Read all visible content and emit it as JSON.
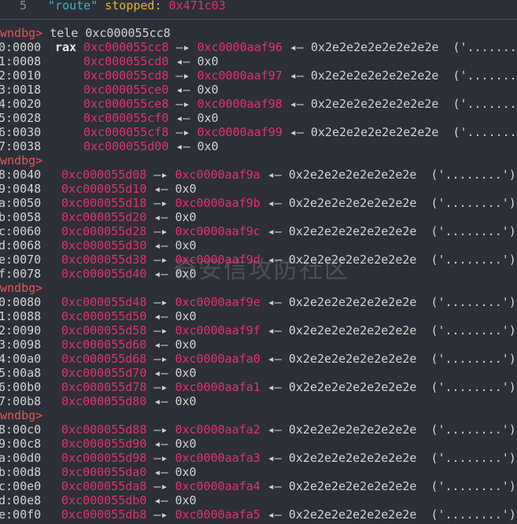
{
  "header": {
    "line_no": "5",
    "name": "\"route\"",
    "status": "stopped:",
    "addr": "0x471c03"
  },
  "watermark": "奇安信攻防社区",
  "blocks": [
    {
      "prompt": "wndbg>",
      "command": "tele 0xc000055cc8",
      "rows": [
        {
          "offset": "0:0000",
          "reg": "rax",
          "addr": "0xc000055cc8",
          "arrow": "—▸",
          "target": "0xc0000aaf96",
          "arrow2": "◂—",
          "value": "0x2e2e2e2e2e2e2e2e",
          "str": "('........"
        },
        {
          "offset": "1:0008",
          "addr": "0xc000055cd0",
          "arrow": "◂—",
          "value": "0x0"
        },
        {
          "offset": "2:0010",
          "addr": "0xc000055cd8",
          "arrow": "—▸",
          "target": "0xc0000aaf97",
          "arrow2": "◂—",
          "value": "0x2e2e2e2e2e2e2e2e",
          "str": "('........"
        },
        {
          "offset": "3:0018",
          "addr": "0xc000055ce0",
          "arrow": "◂—",
          "value": "0x0"
        },
        {
          "offset": "4:0020",
          "addr": "0xc000055ce8",
          "arrow": "—▸",
          "target": "0xc0000aaf98",
          "arrow2": "◂—",
          "value": "0x2e2e2e2e2e2e2e2e",
          "str": "('........"
        },
        {
          "offset": "5:0028",
          "addr": "0xc000055cf0",
          "arrow": "◂—",
          "value": "0x0"
        },
        {
          "offset": "6:0030",
          "addr": "0xc000055cf8",
          "arrow": "—▸",
          "target": "0xc0000aaf99",
          "arrow2": "◂—",
          "value": "0x2e2e2e2e2e2e2e2e",
          "str": "('........"
        },
        {
          "offset": "7:0038",
          "addr": "0xc000055d00",
          "arrow": "◂—",
          "value": "0x0"
        }
      ]
    },
    {
      "prompt": "wndbg>",
      "rows": [
        {
          "offset": "8:0040",
          "addr": "0xc000055d08",
          "arrow": "—▸",
          "target": "0xc0000aaf9a",
          "arrow2": "◂—",
          "value": "0x2e2e2e2e2e2e2e2e",
          "str": "('........')"
        },
        {
          "offset": "9:0048",
          "addr": "0xc000055d10",
          "arrow": "◂—",
          "value": "0x0"
        },
        {
          "offset": "a:0050",
          "addr": "0xc000055d18",
          "arrow": "—▸",
          "target": "0xc0000aaf9b",
          "arrow2": "◂—",
          "value": "0x2e2e2e2e2e2e2e2e",
          "str": "('........')"
        },
        {
          "offset": "b:0058",
          "addr": "0xc000055d20",
          "arrow": "◂—",
          "value": "0x0"
        },
        {
          "offset": "c:0060",
          "addr": "0xc000055d28",
          "arrow": "—▸",
          "target": "0xc0000aaf9c",
          "arrow2": "◂—",
          "value": "0x2e2e2e2e2e2e2e2e",
          "str": "('........')"
        },
        {
          "offset": "d:0068",
          "addr": "0xc000055d30",
          "arrow": "◂—",
          "value": "0x0"
        },
        {
          "offset": "e:0070",
          "addr": "0xc000055d38",
          "arrow": "—▸",
          "target": "0xc0000aaf9d",
          "arrow2": "◂—",
          "value": "0x2e2e2e2e2e2e2e2e",
          "str": "('........')"
        },
        {
          "offset": "f:0078",
          "addr": "0xc000055d40",
          "arrow": "◂—",
          "value": "0x0"
        }
      ]
    },
    {
      "prompt": "wndbg>",
      "rows": [
        {
          "offset": "0:0080",
          "addr": "0xc000055d48",
          "arrow": "—▸",
          "target": "0xc0000aaf9e",
          "arrow2": "◂—",
          "value": "0x2e2e2e2e2e2e2e2e",
          "str": "('........')"
        },
        {
          "offset": "1:0088",
          "addr": "0xc000055d50",
          "arrow": "◂—",
          "value": "0x0"
        },
        {
          "offset": "2:0090",
          "addr": "0xc000055d58",
          "arrow": "—▸",
          "target": "0xc0000aaf9f",
          "arrow2": "◂—",
          "value": "0x2e2e2e2e2e2e2e2e",
          "str": "('........')"
        },
        {
          "offset": "3:0098",
          "addr": "0xc000055d60",
          "arrow": "◂—",
          "value": "0x0"
        },
        {
          "offset": "4:00a0",
          "addr": "0xc000055d68",
          "arrow": "—▸",
          "target": "0xc0000aafa0",
          "arrow2": "◂—",
          "value": "0x2e2e2e2e2e2e2e2e",
          "str": "('........')"
        },
        {
          "offset": "5:00a8",
          "addr": "0xc000055d70",
          "arrow": "◂—",
          "value": "0x0"
        },
        {
          "offset": "6:00b0",
          "addr": "0xc000055d78",
          "arrow": "—▸",
          "target": "0xc0000aafa1",
          "arrow2": "◂—",
          "value": "0x2e2e2e2e2e2e2e2e",
          "str": "('........')"
        },
        {
          "offset": "7:00b8",
          "addr": "0xc000055d80",
          "arrow": "◂—",
          "value": "0x0"
        }
      ]
    },
    {
      "prompt": "wndbg>",
      "rows": [
        {
          "offset": "8:00c0",
          "addr": "0xc000055d88",
          "arrow": "—▸",
          "target": "0xc0000aafa2",
          "arrow2": "◂—",
          "value": "0x2e2e2e2e2e2e2e2e",
          "str": "('........')"
        },
        {
          "offset": "9:00c8",
          "addr": "0xc000055d90",
          "arrow": "◂—",
          "value": "0x0"
        },
        {
          "offset": "a:00d0",
          "addr": "0xc000055d98",
          "arrow": "—▸",
          "target": "0xc0000aafa3",
          "arrow2": "◂—",
          "value": "0x2e2e2e2e2e2e2e2e",
          "str": "('........')"
        },
        {
          "offset": "b:00d8",
          "addr": "0xc000055da0",
          "arrow": "◂—",
          "value": "0x0"
        },
        {
          "offset": "c:00e0",
          "addr": "0xc000055da8",
          "arrow": "—▸",
          "target": "0xc0000aafa4",
          "arrow2": "◂—",
          "value": "0x2e2e2e2e2e2e2e2e",
          "str": "('........')"
        },
        {
          "offset": "d:00e8",
          "addr": "0xc000055db0",
          "arrow": "◂—",
          "value": "0x0"
        },
        {
          "offset": "e:00f0",
          "addr": "0xc000055db8",
          "arrow": "—▸",
          "target": "0xc0000aafa5",
          "arrow2": "◂—",
          "value": "0x2e2e2e2e2e2e2e2e",
          "str": "('........')"
        }
      ]
    }
  ]
}
